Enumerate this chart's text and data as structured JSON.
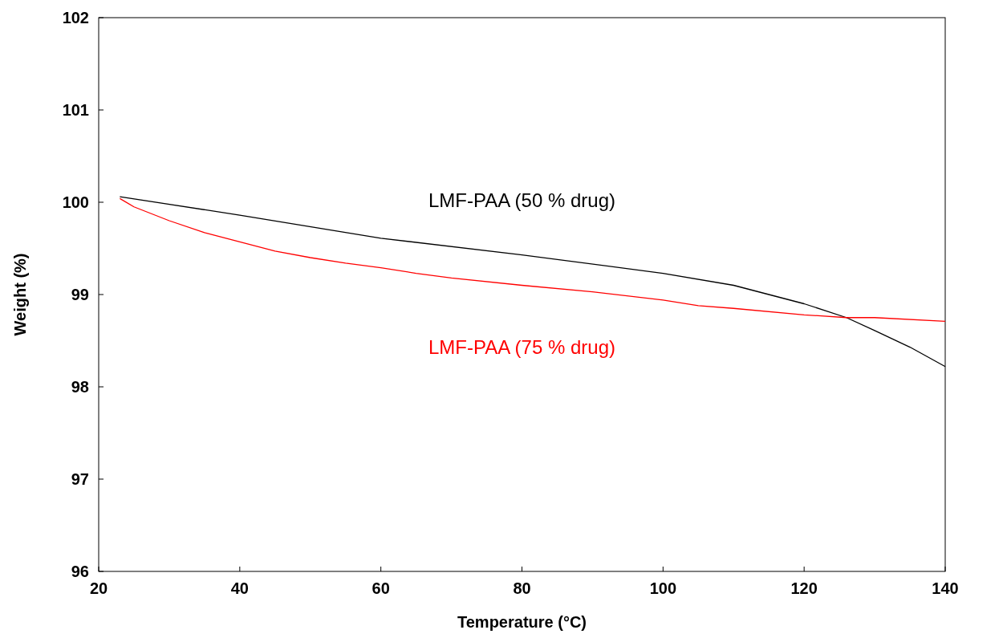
{
  "chart_data": {
    "type": "line",
    "xlabel": "Temperature (°C)",
    "ylabel": "Weight (%)",
    "xlim": [
      20,
      140
    ],
    "xticks": [
      20,
      40,
      60,
      80,
      100,
      120,
      140
    ],
    "ylim": [
      96,
      102
    ],
    "yticks": [
      96,
      97,
      98,
      99,
      100,
      101,
      102
    ],
    "grid": false,
    "legend": false,
    "marker": "none",
    "line_style": "solid",
    "series": [
      {
        "name": "LMF-PAA (50 % drug)",
        "color": "#000000",
        "x": [
          23,
          40,
          60,
          80,
          100,
          110,
          120,
          126,
          130,
          135,
          140
        ],
        "values": [
          100.06,
          99.86,
          99.61,
          99.43,
          99.23,
          99.1,
          98.9,
          98.75,
          98.61,
          98.43,
          98.22
        ]
      },
      {
        "name": "LMF-PAA (75 % drug)",
        "color": "#ff0000",
        "x": [
          23,
          25,
          30,
          35,
          40,
          45,
          50,
          55,
          60,
          65,
          70,
          80,
          90,
          100,
          105,
          110,
          120,
          126,
          130,
          140
        ],
        "values": [
          100.04,
          99.95,
          99.8,
          99.67,
          99.57,
          99.47,
          99.4,
          99.34,
          99.29,
          99.23,
          99.18,
          99.1,
          99.03,
          98.94,
          98.88,
          98.85,
          98.78,
          98.75,
          98.75,
          98.71
        ]
      }
    ]
  }
}
